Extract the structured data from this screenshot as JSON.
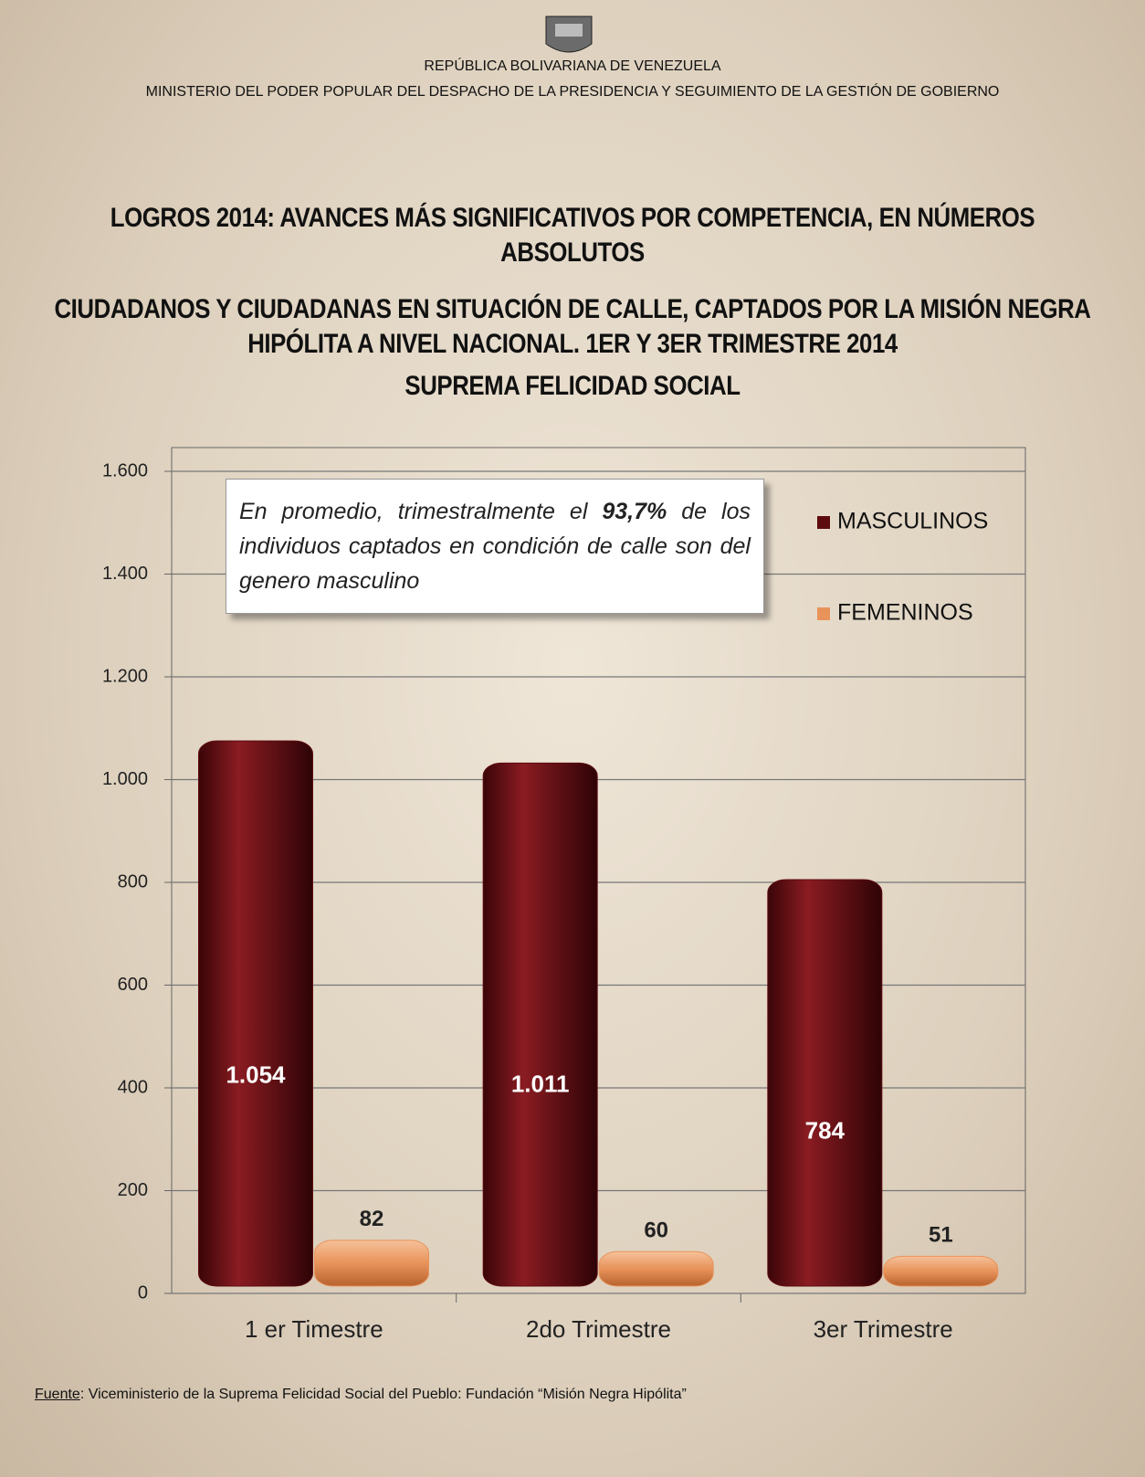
{
  "header": {
    "line1": "REPÚBLICA BOLIVARIANA DE VENEZUELA",
    "line2": "MINISTERIO DEL PODER POPULAR DEL DESPACHO DE LA PRESIDENCIA Y SEGUIMIENTO DE LA GESTIÓN DE GOBIERNO"
  },
  "chart_data": {
    "type": "bar",
    "title": "LOGROS 2014: AVANCES MÁS SIGNIFICATIVOS POR COMPETENCIA, EN NÚMEROS ABSOLUTOS",
    "subtitle": "CIUDADANOS Y CIUDADANAS EN SITUACIÓN DE CALLE, CAPTADOS POR LA MISIÓN NEGRA HIPÓLITA A NIVEL NACIONAL. 1ER Y 3ER TRIMESTRE 2014",
    "subtitle2": "SUPREMA FELICIDAD SOCIAL",
    "annotation": [
      "En promedio, trimestralmente el ",
      "93,7%",
      " de los individuos captados en condición de calle son del genero masculino"
    ],
    "categories": [
      "1 er Timestre",
      "2do Trimestre",
      "3er Trimestre"
    ],
    "series": [
      {
        "name": "MASCULINOS",
        "color": "#5e0b10",
        "values": [
          1054,
          1011,
          784
        ],
        "value_labels": [
          "1.054",
          "1.011",
          "784"
        ]
      },
      {
        "name": "FEMENINOS",
        "color": "#e8935a",
        "values": [
          82,
          60,
          51
        ]
      }
    ],
    "ylim": [
      0,
      1600
    ],
    "yticks": [
      0,
      200,
      400,
      600,
      800,
      {
        "value": 1000,
        "label": "1.000"
      },
      {
        "value": 1200,
        "label": "1.200"
      },
      {
        "value": 1400,
        "label": "1.400"
      },
      {
        "value": 1600,
        "label": "1.600"
      }
    ],
    "grid": true,
    "legend": "top-right"
  },
  "source": {
    "label": "Fuente",
    "text": ": Viceministerio de la Suprema Felicidad Social del Pueblo: Fundación “Misión Negra Hipólita”"
  }
}
